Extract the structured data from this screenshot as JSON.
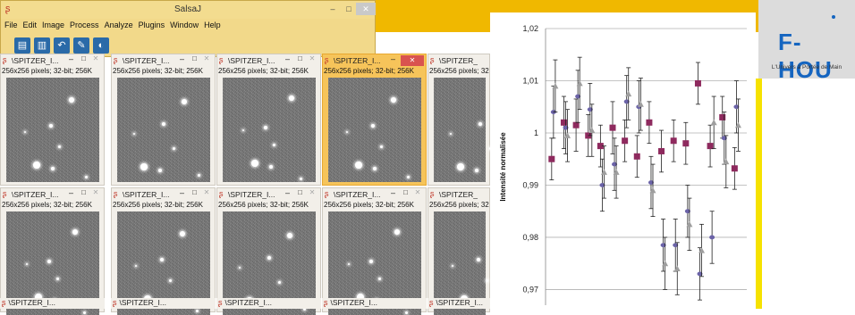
{
  "salsaj": {
    "title": "SalsaJ",
    "window_buttons": {
      "min": "–",
      "max": "□",
      "close": "✕"
    },
    "menu": [
      "File",
      "Edit",
      "Image",
      "Process",
      "Analyze",
      "Plugins",
      "Window",
      "Help"
    ],
    "tools": [
      {
        "icon": "open-folder-icon",
        "glyph": "▤"
      },
      {
        "icon": "document-icon",
        "glyph": "▥"
      },
      {
        "icon": "undo-icon",
        "glyph": "↶"
      },
      {
        "icon": "edit-icon",
        "glyph": "✎"
      },
      {
        "icon": "contrast-icon",
        "glyph": "◐"
      }
    ]
  },
  "image_windows": {
    "title": "\\SPITZER_I...",
    "info": "256x256 pixels; 32-bit; 256K",
    "top_row_partial_title": "\\SPITZER_",
    "top_row_partial_info": "256x256 pixels; 32-",
    "bottom_row_partial_title": "\\SPITZER_",
    "bottom_row_partial_info": "256x256 pixels; 32-",
    "bottom_titles": [
      "\\SPITZER_I...",
      "\\SPITZER_I...",
      "\\SPITZER_I...",
      "\\SPITZER_I...",
      "\\SPITZER_I..."
    ],
    "btn_min": "–",
    "btn_max": "□",
    "btn_close": "✕"
  },
  "logo": {
    "text": "F-HOU",
    "tagline": "L'Univers à Portée de Main"
  },
  "chart_data": {
    "type": "scatter",
    "ylabel": "Intensité normalisée",
    "ylim": [
      0.967,
      1.02
    ],
    "yticks": [
      0.97,
      0.98,
      0.99,
      1,
      1.01,
      1.02
    ],
    "ytick_labels": [
      "0,97",
      "0,98",
      "0,99",
      "1",
      "1,01",
      "1,02"
    ],
    "grid": true,
    "colors": {
      "series1": "#8e2a5e",
      "series2": "#6b63a8",
      "series3": "#9e9e9e",
      "errorbar": "#222222"
    },
    "series": [
      {
        "marker": "square",
        "x": [
          1,
          3,
          5,
          7,
          9,
          11,
          13,
          15,
          17,
          19,
          21,
          23,
          25,
          27,
          29,
          31
        ],
        "y": [
          0.995,
          1.002,
          1.0015,
          0.9995,
          0.9975,
          1.001,
          0.9985,
          0.9955,
          1.002,
          0.9965,
          0.9985,
          0.998,
          1.0095,
          0.9975,
          1.003,
          0.9932
        ],
        "err": [
          0.004,
          0.005,
          0.005,
          0.004,
          0.004,
          0.005,
          0.004,
          0.004,
          0.004,
          0.004,
          0.004,
          0.004,
          0.004,
          0.004,
          0.004,
          0.004
        ]
      },
      {
        "marker": "circle",
        "x": [
          1.3,
          3.3,
          5.3,
          7.3,
          9.3,
          11.3,
          13.3,
          15.3,
          17.3,
          19.3,
          21.3,
          23.3,
          25.3,
          27.3,
          29.3,
          31.3
        ],
        "y": [
          1.004,
          1.001,
          1.007,
          1.0045,
          0.99,
          0.994,
          1.006,
          1.005,
          0.9905,
          0.9785,
          0.9785,
          0.985,
          0.973,
          0.98,
          0.999,
          1.005
        ],
        "err": [
          0.005,
          0.005,
          0.005,
          0.005,
          0.005,
          0.005,
          0.005,
          0.005,
          0.005,
          0.005,
          0.005,
          0.005,
          0.005,
          0.005,
          0.005,
          0.005
        ]
      },
      {
        "marker": "triangle",
        "x": [
          1.6,
          3.6,
          5.6,
          7.6,
          9.6,
          11.6,
          13.6,
          15.6,
          17.6,
          19.6,
          21.6,
          23.6,
          25.6,
          27.6,
          29.6,
          31.6
        ],
        "y": [
          1.009,
          0.9995,
          1.0095,
          1.0005,
          0.9925,
          0.9925,
          1.0075,
          1.0055,
          0.989,
          0.975,
          0.974,
          0.9825,
          0.9775,
          1.002,
          0.9945,
          1.0015
        ],
        "err": [
          0.005,
          0.005,
          0.005,
          0.005,
          0.005,
          0.005,
          0.005,
          0.005,
          0.005,
          0.005,
          0.005,
          0.005,
          0.005,
          0.005,
          0.005,
          0.005
        ]
      }
    ]
  }
}
